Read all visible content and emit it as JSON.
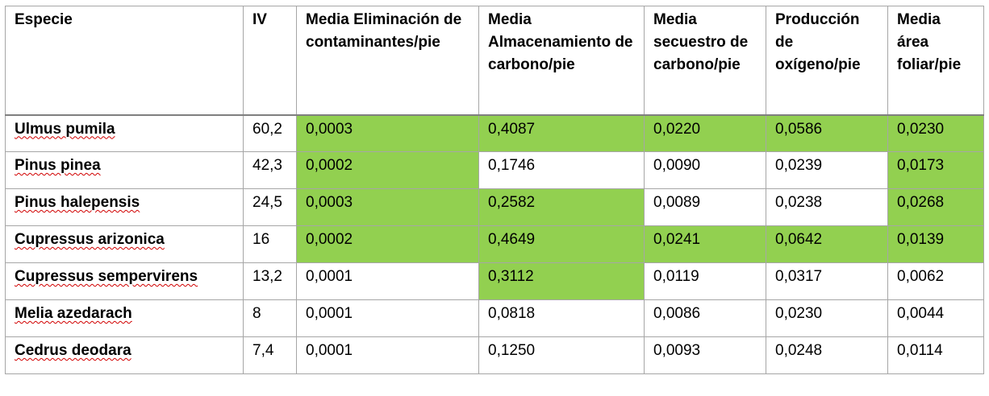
{
  "headers": [
    "Especie",
    "IV",
    "Media Eliminación de contaminantes/pie",
    "Media Almacenamiento de carbono/pie",
    "Media secuestro de carbono/pie",
    "Producción de oxígeno/pie",
    "Media área foliar/pie"
  ],
  "highlight_color": "#92d050",
  "rows": [
    {
      "species": "Ulmus pumila",
      "iv": "60,2",
      "cells": [
        "0,0003",
        "0,4087",
        "0,0220",
        "0,0586",
        "0,0230"
      ],
      "highlight": [
        true,
        true,
        true,
        true,
        true
      ]
    },
    {
      "species": "Pinus pinea",
      "iv": "42,3",
      "cells": [
        "0,0002",
        "0,1746",
        "0,0090",
        "0,0239",
        "0,0173"
      ],
      "highlight": [
        true,
        false,
        false,
        false,
        true
      ]
    },
    {
      "species": "Pinus halepensis",
      "iv": "24,5",
      "cells": [
        "0,0003",
        "0,2582",
        "0,0089",
        "0,0238",
        "0,0268"
      ],
      "highlight": [
        true,
        true,
        false,
        false,
        true
      ]
    },
    {
      "species": "Cupressus arizonica",
      "iv": "16",
      "cells": [
        "0,0002",
        "0,4649",
        "0,0241",
        "0,0642",
        "0,0139"
      ],
      "highlight": [
        true,
        true,
        true,
        true,
        true
      ]
    },
    {
      "species": "Cupressus sempervirens",
      "iv": "13,2",
      "cells": [
        "0,0001",
        "0,3112",
        "0,0119",
        "0,0317",
        "0,0062"
      ],
      "highlight": [
        false,
        true,
        false,
        false,
        false
      ]
    },
    {
      "species": "Melia azedarach",
      "iv": "8",
      "cells": [
        "0,0001",
        "0,0818",
        "0,0086",
        "0,0230",
        "0,0044"
      ],
      "highlight": [
        false,
        false,
        false,
        false,
        false
      ]
    },
    {
      "species": "Cedrus deodara",
      "iv": "7,4",
      "cells": [
        "0,0001",
        "0,1250",
        "0,0093",
        "0,0248",
        "0,0114"
      ],
      "highlight": [
        false,
        false,
        false,
        false,
        false
      ]
    }
  ]
}
